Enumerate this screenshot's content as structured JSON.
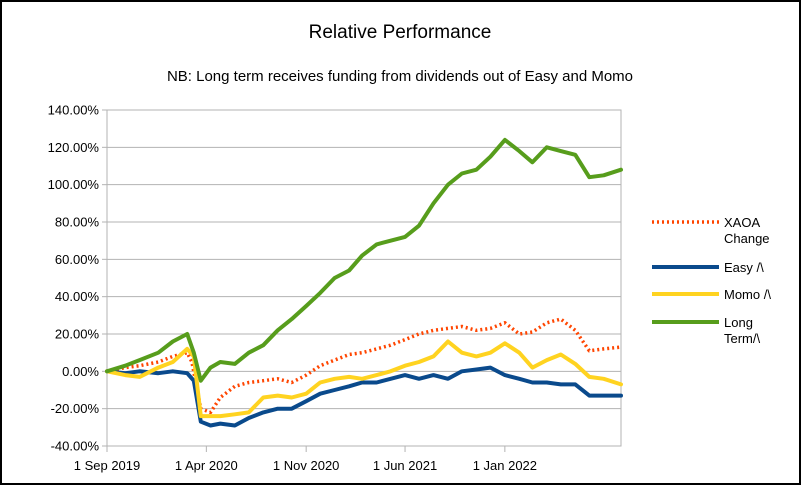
{
  "chart_data": {
    "type": "line",
    "title": "Relative Performance",
    "subtitle": "NB: Long term receives funding from dividends out of Easy and Momo",
    "xlabel": "",
    "ylabel": "",
    "x_tick_labels": [
      "1 Sep 2019",
      "1 Apr 2020",
      "1 Nov 2020",
      "1 Jun 2021",
      "1 Jan 2022"
    ],
    "y_tick_labels": [
      "-40.00%",
      "-20.00%",
      "0.00%",
      "20.00%",
      "40.00%",
      "60.00%",
      "80.00%",
      "100.00%",
      "120.00%",
      "140.00%"
    ],
    "x_range": [
      "2019-09-01",
      "2022-09-07"
    ],
    "ylim": [
      -40,
      140
    ],
    "grid": "horizontal",
    "legend_position": "right",
    "series": [
      {
        "name": "XAOA Change",
        "color": "#ff4500",
        "style": "dotted",
        "points": [
          [
            "2019-09-01",
            0
          ],
          [
            "2019-10-10",
            2
          ],
          [
            "2019-11-10",
            3
          ],
          [
            "2019-12-20",
            5
          ],
          [
            "2020-01-20",
            8
          ],
          [
            "2020-02-20",
            10
          ],
          [
            "2020-03-01",
            5
          ],
          [
            "2020-03-20",
            -20
          ],
          [
            "2020-04-10",
            -22
          ],
          [
            "2020-05-01",
            -14
          ],
          [
            "2020-06-01",
            -8
          ],
          [
            "2020-07-01",
            -6
          ],
          [
            "2020-08-01",
            -5
          ],
          [
            "2020-09-01",
            -4
          ],
          [
            "2020-10-01",
            -6
          ],
          [
            "2020-11-01",
            -2
          ],
          [
            "2020-12-01",
            3
          ],
          [
            "2021-01-01",
            6
          ],
          [
            "2021-02-01",
            9
          ],
          [
            "2021-03-01",
            10
          ],
          [
            "2021-04-01",
            12
          ],
          [
            "2021-05-01",
            14
          ],
          [
            "2021-06-01",
            17
          ],
          [
            "2021-07-01",
            20
          ],
          [
            "2021-08-01",
            22
          ],
          [
            "2021-09-01",
            23
          ],
          [
            "2021-10-01",
            24
          ],
          [
            "2021-11-01",
            22
          ],
          [
            "2021-12-01",
            23
          ],
          [
            "2022-01-01",
            26
          ],
          [
            "2022-02-01",
            20
          ],
          [
            "2022-03-01",
            21
          ],
          [
            "2022-04-01",
            26
          ],
          [
            "2022-05-01",
            28
          ],
          [
            "2022-06-01",
            22
          ],
          [
            "2022-07-01",
            11
          ],
          [
            "2022-08-01",
            12
          ],
          [
            "2022-09-07",
            13
          ]
        ]
      },
      {
        "name": "Easy /\\",
        "color": "#0a4a8c",
        "style": "solid",
        "points": [
          [
            "2019-09-01",
            0
          ],
          [
            "2019-10-10",
            -1
          ],
          [
            "2019-11-10",
            0
          ],
          [
            "2019-12-20",
            -1
          ],
          [
            "2020-01-20",
            0
          ],
          [
            "2020-02-20",
            -1
          ],
          [
            "2020-03-05",
            -5
          ],
          [
            "2020-03-20",
            -27
          ],
          [
            "2020-04-10",
            -29
          ],
          [
            "2020-05-01",
            -28
          ],
          [
            "2020-06-01",
            -29
          ],
          [
            "2020-07-01",
            -25
          ],
          [
            "2020-08-01",
            -22
          ],
          [
            "2020-09-01",
            -20
          ],
          [
            "2020-10-01",
            -20
          ],
          [
            "2020-11-01",
            -16
          ],
          [
            "2020-12-01",
            -12
          ],
          [
            "2021-01-01",
            -10
          ],
          [
            "2021-02-01",
            -8
          ],
          [
            "2021-03-01",
            -6
          ],
          [
            "2021-04-01",
            -6
          ],
          [
            "2021-05-01",
            -4
          ],
          [
            "2021-06-01",
            -2
          ],
          [
            "2021-07-01",
            -4
          ],
          [
            "2021-08-01",
            -2
          ],
          [
            "2021-09-01",
            -4
          ],
          [
            "2021-10-01",
            0
          ],
          [
            "2021-11-01",
            1
          ],
          [
            "2021-12-01",
            2
          ],
          [
            "2022-01-01",
            -2
          ],
          [
            "2022-02-01",
            -4
          ],
          [
            "2022-03-01",
            -6
          ],
          [
            "2022-04-01",
            -6
          ],
          [
            "2022-05-01",
            -7
          ],
          [
            "2022-06-01",
            -7
          ],
          [
            "2022-07-01",
            -13
          ],
          [
            "2022-08-01",
            -13
          ],
          [
            "2022-09-07",
            -13
          ]
        ]
      },
      {
        "name": "Momo /\\",
        "color": "#ffd320",
        "style": "solid",
        "points": [
          [
            "2019-09-01",
            0
          ],
          [
            "2019-10-10",
            -2
          ],
          [
            "2019-11-10",
            -3
          ],
          [
            "2019-12-20",
            2
          ],
          [
            "2020-01-20",
            5
          ],
          [
            "2020-02-20",
            12
          ],
          [
            "2020-03-05",
            8
          ],
          [
            "2020-03-20",
            -24
          ],
          [
            "2020-04-10",
            -24
          ],
          [
            "2020-05-01",
            -24
          ],
          [
            "2020-06-01",
            -23
          ],
          [
            "2020-07-01",
            -22
          ],
          [
            "2020-08-01",
            -14
          ],
          [
            "2020-09-01",
            -13
          ],
          [
            "2020-10-01",
            -14
          ],
          [
            "2020-11-01",
            -12
          ],
          [
            "2020-12-01",
            -6
          ],
          [
            "2021-01-01",
            -4
          ],
          [
            "2021-02-01",
            -3
          ],
          [
            "2021-03-01",
            -4
          ],
          [
            "2021-04-01",
            -2
          ],
          [
            "2021-05-01",
            0
          ],
          [
            "2021-06-01",
            3
          ],
          [
            "2021-07-01",
            5
          ],
          [
            "2021-08-01",
            8
          ],
          [
            "2021-09-01",
            16
          ],
          [
            "2021-10-01",
            10
          ],
          [
            "2021-11-01",
            8
          ],
          [
            "2021-12-01",
            10
          ],
          [
            "2022-01-01",
            15
          ],
          [
            "2022-02-01",
            10
          ],
          [
            "2022-03-01",
            2
          ],
          [
            "2022-04-01",
            6
          ],
          [
            "2022-05-01",
            9
          ],
          [
            "2022-06-01",
            4
          ],
          [
            "2022-07-01",
            -3
          ],
          [
            "2022-08-01",
            -4
          ],
          [
            "2022-09-07",
            -7
          ]
        ]
      },
      {
        "name": "Long Term/\\",
        "color": "#579d1c",
        "style": "solid",
        "points": [
          [
            "2019-09-01",
            0
          ],
          [
            "2019-10-10",
            3
          ],
          [
            "2019-11-10",
            6
          ],
          [
            "2019-12-20",
            10
          ],
          [
            "2020-01-20",
            16
          ],
          [
            "2020-02-20",
            20
          ],
          [
            "2020-03-05",
            10
          ],
          [
            "2020-03-20",
            -5
          ],
          [
            "2020-04-10",
            2
          ],
          [
            "2020-05-01",
            5
          ],
          [
            "2020-06-01",
            4
          ],
          [
            "2020-07-01",
            10
          ],
          [
            "2020-08-01",
            14
          ],
          [
            "2020-09-01",
            22
          ],
          [
            "2020-10-01",
            28
          ],
          [
            "2020-11-01",
            35
          ],
          [
            "2020-12-01",
            42
          ],
          [
            "2021-01-01",
            50
          ],
          [
            "2021-02-01",
            54
          ],
          [
            "2021-03-01",
            62
          ],
          [
            "2021-04-01",
            68
          ],
          [
            "2021-05-01",
            70
          ],
          [
            "2021-06-01",
            72
          ],
          [
            "2021-07-01",
            78
          ],
          [
            "2021-08-01",
            90
          ],
          [
            "2021-09-01",
            100
          ],
          [
            "2021-10-01",
            106
          ],
          [
            "2021-11-01",
            108
          ],
          [
            "2021-12-01",
            115
          ],
          [
            "2022-01-01",
            124
          ],
          [
            "2022-02-01",
            118
          ],
          [
            "2022-03-01",
            112
          ],
          [
            "2022-04-01",
            120
          ],
          [
            "2022-05-01",
            118
          ],
          [
            "2022-06-01",
            116
          ],
          [
            "2022-07-01",
            104
          ],
          [
            "2022-08-01",
            105
          ],
          [
            "2022-09-07",
            108
          ]
        ]
      }
    ],
    "legend": [
      {
        "lines": [
          "XAOA",
          "Change"
        ],
        "series": 0
      },
      {
        "lines": [
          "Easy /\\"
        ],
        "series": 1
      },
      {
        "lines": [
          "Momo /\\"
        ],
        "series": 2
      },
      {
        "lines": [
          "Long",
          "Term/\\"
        ],
        "series": 3
      }
    ]
  }
}
